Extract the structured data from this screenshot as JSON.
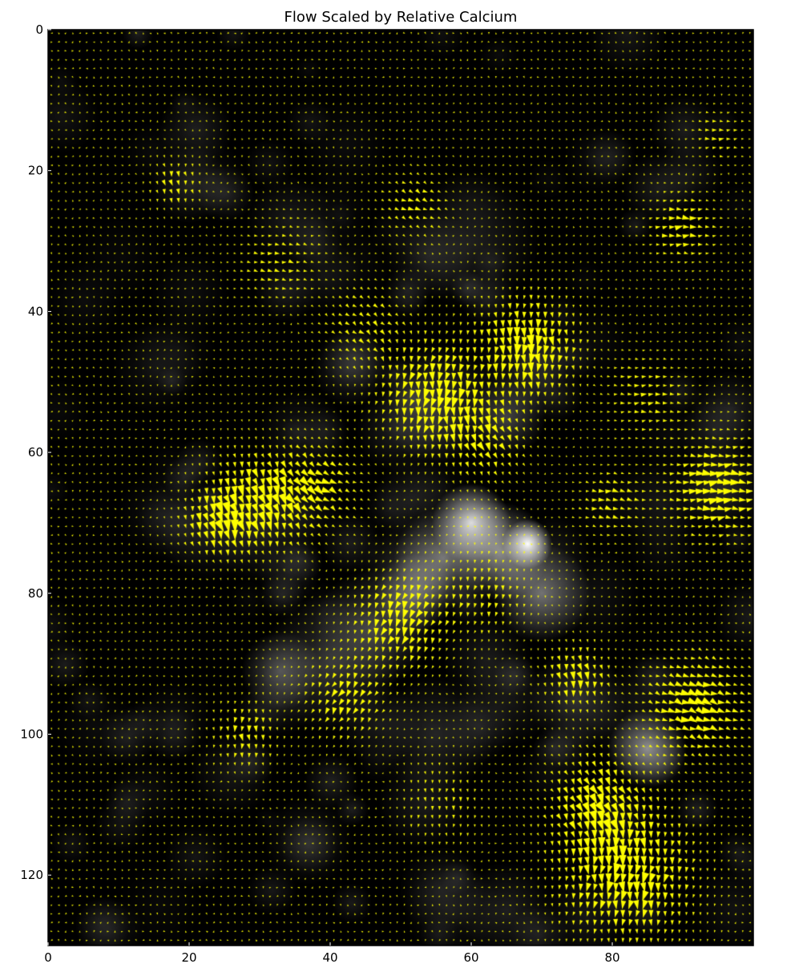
{
  "chart_data": {
    "type": "quiver",
    "title": "Flow Scaled by Relative Calcium",
    "xlabel": "",
    "ylabel": "",
    "xlim": [
      0,
      100
    ],
    "ylim": [
      130,
      0
    ],
    "y_axis_inverted": true,
    "x_ticks": [
      0,
      20,
      40,
      60,
      80
    ],
    "y_ticks": [
      0,
      20,
      40,
      60,
      80,
      100,
      120
    ],
    "grid": false,
    "legend": "none",
    "background": {
      "type": "grayscale-image",
      "colormap": "gray",
      "bright_spots": [
        {
          "x": 60,
          "y": 70,
          "intensity": 0.85,
          "radius": 4
        },
        {
          "x": 68,
          "y": 73,
          "intensity": 1.0,
          "radius": 2.5
        },
        {
          "x": 64,
          "y": 74,
          "intensity": 0.55,
          "radius": 5
        },
        {
          "x": 56,
          "y": 75,
          "intensity": 0.45,
          "radius": 5
        },
        {
          "x": 70,
          "y": 80,
          "intensity": 0.45,
          "radius": 5
        },
        {
          "x": 52,
          "y": 80,
          "intensity": 0.4,
          "radius": 4
        },
        {
          "x": 85,
          "y": 102,
          "intensity": 0.55,
          "radius": 4
        },
        {
          "x": 55,
          "y": 53,
          "intensity": 0.2,
          "radius": 6
        },
        {
          "x": 40,
          "y": 90,
          "intensity": 0.2,
          "radius": 7
        },
        {
          "x": 33,
          "y": 91,
          "intensity": 0.3,
          "radius": 4
        },
        {
          "x": 46,
          "y": 85,
          "intensity": 0.25,
          "radius": 6
        },
        {
          "x": 65,
          "y": 55,
          "intensity": 0.25,
          "radius": 4
        },
        {
          "x": 30,
          "y": 70,
          "intensity": 0.15,
          "radius": 6
        },
        {
          "x": 75,
          "y": 95,
          "intensity": 0.2,
          "radius": 5
        },
        {
          "x": 55,
          "y": 100,
          "intensity": 0.15,
          "radius": 6
        },
        {
          "x": 60,
          "y": 30,
          "intensity": 0.12,
          "radius": 7
        },
        {
          "x": 43,
          "y": 48,
          "intensity": 0.15,
          "radius": 4
        },
        {
          "x": 20,
          "y": 22,
          "intensity": 0.12,
          "radius": 4
        },
        {
          "x": 65,
          "y": 125,
          "intensity": 0.12,
          "radius": 5
        }
      ]
    },
    "vector_field": {
      "color": "#ffff00",
      "grid_spacing": 1,
      "magnitude_regions": [
        {
          "x": 68,
          "y": 45,
          "strength": 1.0,
          "radius": 6,
          "angle_deg": 90
        },
        {
          "x": 55,
          "y": 52,
          "strength": 0.9,
          "radius": 7,
          "angle_deg": 100
        },
        {
          "x": 30,
          "y": 67,
          "strength": 0.95,
          "radius": 6,
          "angle_deg": 80
        },
        {
          "x": 24,
          "y": 70,
          "strength": 0.8,
          "radius": 4,
          "angle_deg": 70
        },
        {
          "x": 38,
          "y": 65,
          "strength": 0.7,
          "radius": 5,
          "angle_deg": 30
        },
        {
          "x": 82,
          "y": 120,
          "strength": 1.0,
          "radius": 8,
          "angle_deg": 95
        },
        {
          "x": 78,
          "y": 110,
          "strength": 0.8,
          "radius": 6,
          "angle_deg": 60
        },
        {
          "x": 92,
          "y": 96,
          "strength": 0.9,
          "radius": 6,
          "angle_deg": 20
        },
        {
          "x": 95,
          "y": 65,
          "strength": 0.9,
          "radius": 6,
          "angle_deg": 0
        },
        {
          "x": 90,
          "y": 28,
          "strength": 0.6,
          "radius": 4,
          "angle_deg": 0
        },
        {
          "x": 50,
          "y": 84,
          "strength": 0.8,
          "radius": 6,
          "angle_deg": 110
        },
        {
          "x": 42,
          "y": 95,
          "strength": 0.6,
          "radius": 5,
          "angle_deg": 120
        },
        {
          "x": 28,
          "y": 100,
          "strength": 0.5,
          "radius": 4,
          "angle_deg": 90
        },
        {
          "x": 75,
          "y": 92,
          "strength": 0.65,
          "radius": 4,
          "angle_deg": 80
        },
        {
          "x": 62,
          "y": 58,
          "strength": 0.6,
          "radius": 5,
          "angle_deg": 60
        },
        {
          "x": 80,
          "y": 67,
          "strength": 0.5,
          "radius": 4,
          "angle_deg": 10
        },
        {
          "x": 52,
          "y": 25,
          "strength": 0.4,
          "radius": 4,
          "angle_deg": 30
        },
        {
          "x": 18,
          "y": 22,
          "strength": 0.45,
          "radius": 3,
          "angle_deg": 80
        },
        {
          "x": 45,
          "y": 42,
          "strength": 0.4,
          "radius": 5,
          "angle_deg": 40
        },
        {
          "x": 95,
          "y": 15,
          "strength": 0.35,
          "radius": 3,
          "angle_deg": 0
        },
        {
          "x": 85,
          "y": 52,
          "strength": 0.4,
          "radius": 5,
          "angle_deg": 0
        },
        {
          "x": 33,
          "y": 33,
          "strength": 0.35,
          "radius": 5,
          "angle_deg": 10
        },
        {
          "x": 62,
          "y": 80,
          "strength": 0.4,
          "radius": 5,
          "angle_deg": 100
        },
        {
          "x": 56,
          "y": 110,
          "strength": 0.3,
          "radius": 5,
          "angle_deg": 90
        }
      ]
    }
  }
}
